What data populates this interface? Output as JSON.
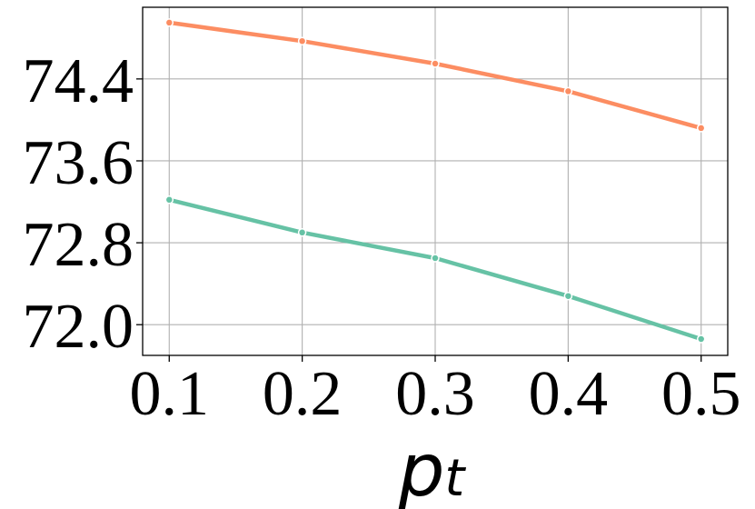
{
  "chart_data": {
    "type": "line",
    "title": "",
    "xlabel": "p",
    "xlabel_subscript": "t",
    "ylabel": "",
    "x": [
      0.1,
      0.2,
      0.3,
      0.4,
      0.5
    ],
    "x_tick_labels": [
      "0.1",
      "0.2",
      "0.3",
      "0.4",
      "0.5"
    ],
    "y_ticks": [
      72.0,
      72.8,
      73.6,
      74.4
    ],
    "y_tick_labels": [
      "72.0",
      "72.8",
      "73.6",
      "74.4"
    ],
    "xlim": [
      0.08,
      0.52
    ],
    "ylim": [
      71.7,
      75.1
    ],
    "grid": true,
    "series": [
      {
        "values": [
          74.95,
          74.77,
          74.55,
          74.28,
          73.92
        ],
        "color": "#fc8d62"
      },
      {
        "values": [
          73.22,
          72.9,
          72.65,
          72.28,
          71.86
        ],
        "color": "#66c2a5"
      }
    ]
  }
}
